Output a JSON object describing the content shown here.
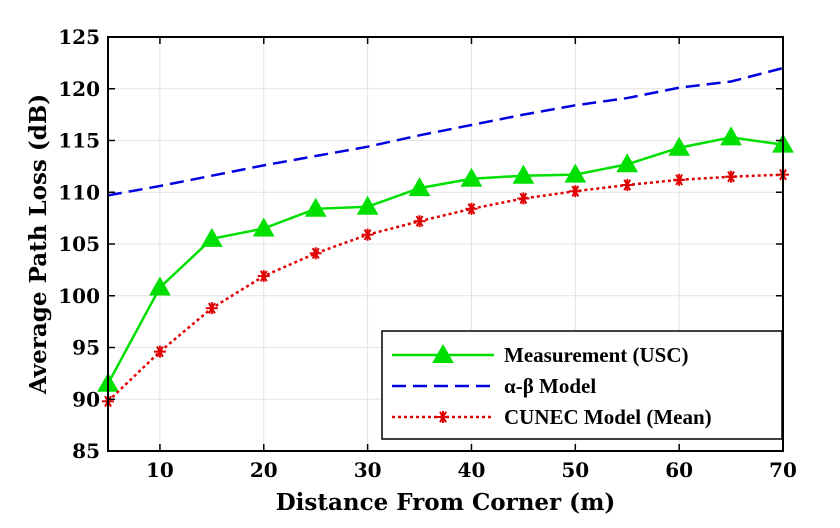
{
  "chart_data": {
    "type": "line",
    "xlabel": "Distance From Corner (m)",
    "ylabel": "Average Path Loss (dB)",
    "xlim": [
      5,
      70
    ],
    "ylim": [
      85,
      125
    ],
    "xticks": [
      10,
      20,
      30,
      40,
      50,
      60,
      70
    ],
    "yticks": [
      85,
      90,
      95,
      100,
      105,
      110,
      115,
      120,
      125
    ],
    "grid": true,
    "legend_position": "bottom-right",
    "series": [
      {
        "name": "Measurement (USC)",
        "color": "#00e000",
        "style": "solid",
        "marker": "triangle",
        "x": [
          5,
          10,
          15,
          20,
          25,
          30,
          35,
          40,
          45,
          50,
          55,
          60,
          65,
          70
        ],
        "y": [
          91.5,
          100.8,
          105.5,
          106.5,
          108.4,
          108.6,
          110.4,
          111.3,
          111.6,
          111.7,
          112.7,
          114.3,
          115.3,
          114.6
        ]
      },
      {
        "name": "α-β Model",
        "color": "#0000e0",
        "style": "dashed",
        "marker": "none",
        "x": [
          5,
          10,
          15,
          20,
          25,
          30,
          35,
          40,
          45,
          50,
          55,
          60,
          65,
          70
        ],
        "y": [
          109.7,
          110.6,
          111.6,
          112.6,
          113.5,
          114.4,
          115.5,
          116.5,
          117.5,
          118.4,
          119.1,
          120.1,
          120.7,
          122.0
        ]
      },
      {
        "name": "CUNEC Model (Mean)",
        "color": "#e00000",
        "style": "dotted",
        "marker": "asterisk",
        "x": [
          5,
          10,
          15,
          20,
          25,
          30,
          35,
          40,
          45,
          50,
          55,
          60,
          65,
          70
        ],
        "y": [
          89.8,
          94.6,
          98.8,
          101.9,
          104.1,
          105.9,
          107.2,
          108.4,
          109.4,
          110.1,
          110.7,
          111.2,
          111.5,
          111.7
        ]
      }
    ]
  }
}
